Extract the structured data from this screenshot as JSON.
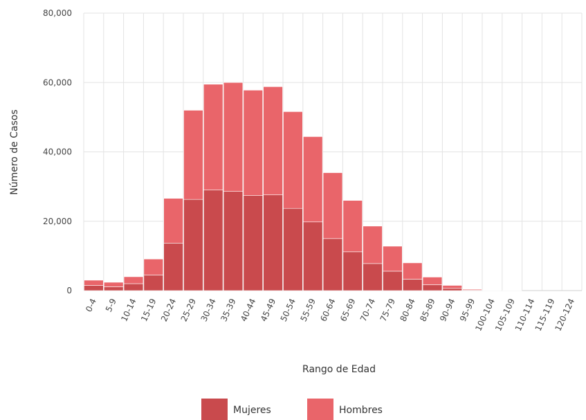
{
  "chart_data": {
    "type": "bar",
    "stacked": true,
    "title": "",
    "xlabel": "Rango de Edad",
    "ylabel": "Número de Casos",
    "ylim": [
      0,
      80000
    ],
    "yticks": [
      "0",
      "20,000",
      "40,000",
      "60,000",
      "80,000"
    ],
    "grid": true,
    "legend_position": "bottom-center",
    "categories": [
      "0-4",
      "5-9",
      "10-14",
      "15-19",
      "20-24",
      "25-29",
      "30-34",
      "35-39",
      "40-44",
      "45-49",
      "50-54",
      "55-59",
      "60-64",
      "65-69",
      "70-74",
      "75-79",
      "80-84",
      "85-89",
      "90-94",
      "95-99",
      "100-104",
      "105-109",
      "110-114",
      "115-119",
      "120-124"
    ],
    "series": [
      {
        "name": "Mujeres",
        "color": "#c94a4d",
        "values": [
          1500,
          1100,
          2000,
          4500,
          13700,
          26300,
          29000,
          28600,
          27400,
          27600,
          23700,
          19800,
          15000,
          11200,
          7800,
          5600,
          3300,
          1700,
          650,
          180,
          40,
          10,
          0,
          0,
          0
        ]
      },
      {
        "name": "Hombres",
        "color": "#e9656a",
        "values": [
          1500,
          1300,
          2000,
          4600,
          12900,
          25700,
          30500,
          31400,
          30400,
          31200,
          27900,
          24600,
          19000,
          14800,
          10800,
          7200,
          4700,
          2200,
          850,
          220,
          60,
          20,
          0,
          0,
          0
        ]
      }
    ]
  }
}
